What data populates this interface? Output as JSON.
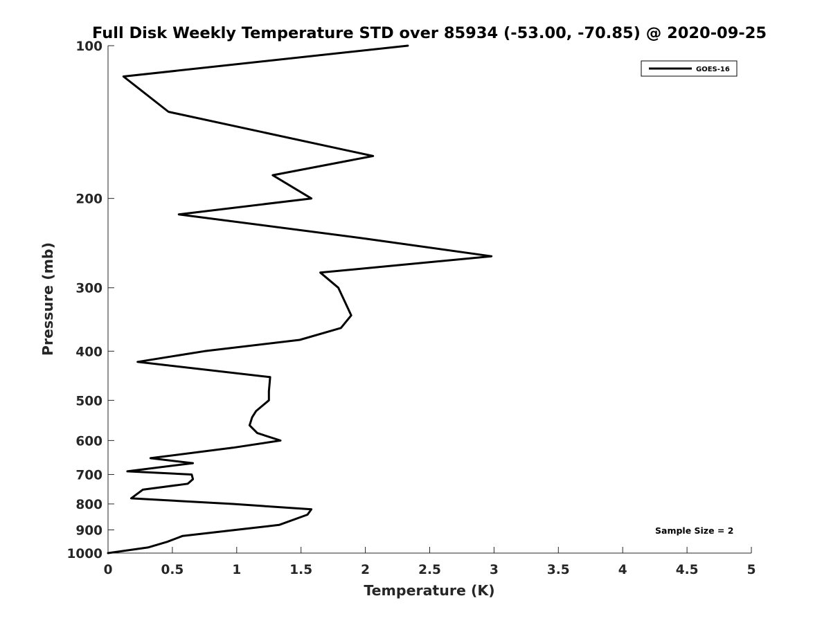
{
  "chart_data": {
    "type": "line",
    "title": "Full Disk Weekly Temperature STD over 85934 (-53.00, -70.85) @ 2020-09-25",
    "xlabel": "Temperature (K)",
    "ylabel": "Pressure (mb)",
    "xlim": [
      0,
      5
    ],
    "ylim": [
      1000,
      100
    ],
    "y_scale": "log",
    "x_ticks": [
      "0",
      "0.5",
      "1",
      "1.5",
      "2",
      "2.5",
      "3",
      "3.5",
      "4",
      "4.5",
      "5"
    ],
    "y_ticks": [
      "100",
      "200",
      "300",
      "400",
      "500",
      "600",
      "700",
      "800",
      "900",
      "1000"
    ],
    "grid": false,
    "legend_position": "top-right",
    "series": [
      {
        "name": "GOES-16",
        "color": "#000000",
        "points": [
          [
            2.33,
            100
          ],
          [
            0.12,
            115
          ],
          [
            0.47,
            135
          ],
          [
            2.06,
            165
          ],
          [
            1.28,
            180
          ],
          [
            1.58,
            200
          ],
          [
            0.55,
            215
          ],
          [
            2.0,
            240
          ],
          [
            2.98,
            260
          ],
          [
            1.65,
            280
          ],
          [
            1.79,
            300
          ],
          [
            1.89,
            340
          ],
          [
            1.81,
            360
          ],
          [
            1.49,
            380
          ],
          [
            0.75,
            400
          ],
          [
            0.23,
            420
          ],
          [
            1.26,
            450
          ],
          [
            1.25,
            480
          ],
          [
            1.25,
            500
          ],
          [
            1.15,
            525
          ],
          [
            1.12,
            540
          ],
          [
            1.1,
            560
          ],
          [
            1.16,
            580
          ],
          [
            1.34,
            600
          ],
          [
            0.97,
            620
          ],
          [
            0.33,
            650
          ],
          [
            0.66,
            665
          ],
          [
            0.15,
            690
          ],
          [
            0.65,
            700
          ],
          [
            0.66,
            715
          ],
          [
            0.62,
            730
          ],
          [
            0.27,
            750
          ],
          [
            0.18,
            780
          ],
          [
            0.97,
            800
          ],
          [
            1.58,
            820
          ],
          [
            1.55,
            840
          ],
          [
            1.33,
            880
          ],
          [
            0.58,
            925
          ],
          [
            0.46,
            950
          ],
          [
            0.31,
            975
          ],
          [
            0,
            1000
          ]
        ]
      }
    ],
    "annotations": [
      "Sample Size = 2"
    ]
  }
}
